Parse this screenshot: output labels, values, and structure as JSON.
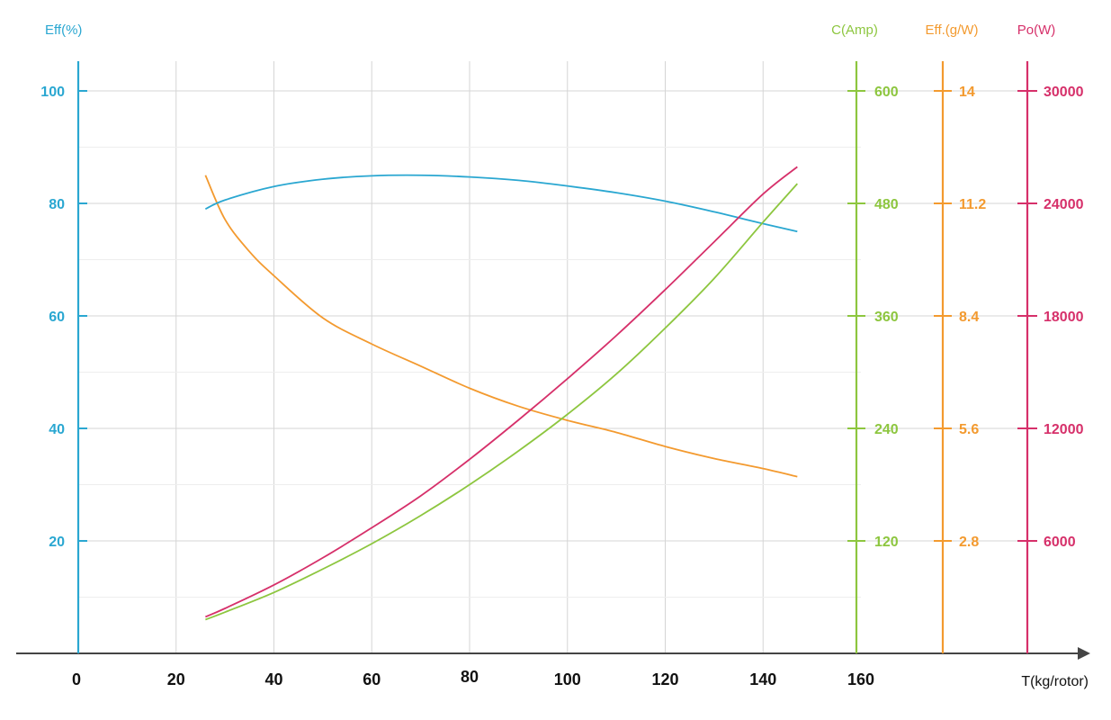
{
  "colors": {
    "eff_pct": "#2aa7d1",
    "current": "#8dc63f",
    "eff_gw": "#f39a2f",
    "power": "#d6306a",
    "grid_major": "#d5d5d5",
    "grid_minor": "#eeeeee",
    "x_axis": "#444444",
    "x_tick_text": "#111111"
  },
  "chart_data": {
    "type": "line",
    "xlabel": "T(kg/rotor)",
    "x_ticks": [
      "0",
      "20",
      "40",
      "60",
      "80",
      "100",
      "120",
      "140",
      "160"
    ],
    "xlim": [
      0,
      160
    ],
    "grid": true,
    "axes": [
      {
        "id": "eff_pct",
        "label": "Eff(%)",
        "position": "left",
        "ticks": [
          "20",
          "40",
          "60",
          "80",
          "100"
        ],
        "tick_values": [
          20,
          40,
          60,
          80,
          100
        ],
        "ylim": [
          0,
          100
        ]
      },
      {
        "id": "current",
        "label": "C(Amp)",
        "position": "right",
        "ticks": [
          "120",
          "240",
          "360",
          "480",
          "600"
        ],
        "tick_values": [
          120,
          240,
          360,
          480,
          600
        ],
        "ylim": [
          0,
          600
        ]
      },
      {
        "id": "eff_gw",
        "label": "Eff.(g/W)",
        "position": "right",
        "ticks": [
          "2.8",
          "5.6",
          "8.4",
          "11.2",
          "14"
        ],
        "tick_values": [
          2.8,
          5.6,
          8.4,
          11.2,
          14
        ],
        "ylim": [
          0,
          14
        ]
      },
      {
        "id": "power",
        "label": "Po(W)",
        "position": "right",
        "ticks": [
          "6000",
          "12000",
          "18000",
          "24000",
          "30000"
        ],
        "tick_values": [
          6000,
          12000,
          18000,
          24000,
          30000
        ],
        "ylim": [
          0,
          30000
        ]
      }
    ],
    "series": [
      {
        "axis": "eff_pct",
        "x": [
          26,
          30,
          40,
          50,
          60,
          70,
          80,
          90,
          100,
          110,
          120,
          130,
          140,
          147
        ],
        "y": [
          79,
          80.6,
          83,
          84.3,
          84.9,
          85,
          84.7,
          84.1,
          83.1,
          81.9,
          80.4,
          78.5,
          76.4,
          75
        ]
      },
      {
        "axis": "current",
        "x": [
          26,
          30,
          40,
          50,
          60,
          70,
          80,
          90,
          100,
          110,
          120,
          130,
          140,
          147
        ],
        "y": [
          36,
          44,
          65,
          90,
          117,
          147,
          180,
          216,
          255,
          298,
          347,
          400,
          460,
          501
        ]
      },
      {
        "axis": "eff_gw",
        "x": [
          26,
          30,
          35,
          40,
          50,
          60,
          70,
          80,
          90,
          100,
          110,
          120,
          130,
          140,
          147
        ],
        "y": [
          11.9,
          10.8,
          10.0,
          9.4,
          8.35,
          7.7,
          7.15,
          6.6,
          6.15,
          5.8,
          5.5,
          5.15,
          4.85,
          4.6,
          4.4
        ]
      },
      {
        "axis": "power",
        "x": [
          26,
          30,
          40,
          50,
          60,
          70,
          80,
          90,
          100,
          110,
          120,
          130,
          140,
          147
        ],
        "y": [
          1950,
          2400,
          3650,
          5100,
          6700,
          8400,
          10350,
          12450,
          14650,
          16950,
          19400,
          21950,
          24500,
          25950
        ]
      }
    ]
  }
}
